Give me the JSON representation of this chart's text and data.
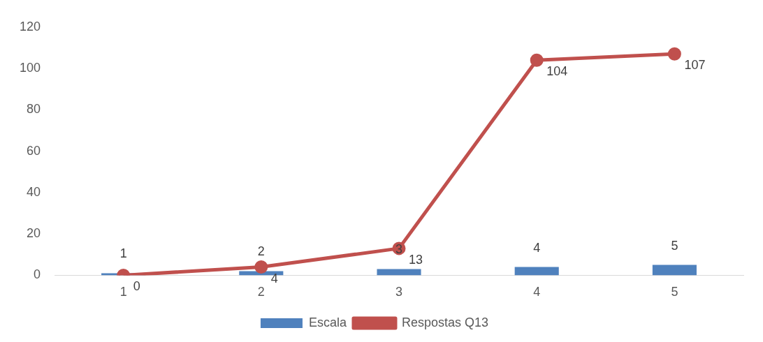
{
  "chart_data": {
    "type": "bar",
    "categories": [
      "1",
      "2",
      "3",
      "4",
      "5"
    ],
    "series": [
      {
        "name": "Escala",
        "color": "#4f81bd",
        "values": [
          1,
          2,
          3,
          4,
          5
        ]
      },
      {
        "name": "Respostas Q13",
        "type": "line",
        "color": "#c0504d",
        "values": [
          0,
          4,
          13,
          104,
          107
        ]
      }
    ],
    "ylim": [
      0,
      120
    ],
    "yticks": [
      0,
      20,
      40,
      60,
      80,
      100,
      120
    ],
    "grid": false,
    "legend": "bottom",
    "marker": "circle",
    "line_style": "solid",
    "data_labels": true
  }
}
